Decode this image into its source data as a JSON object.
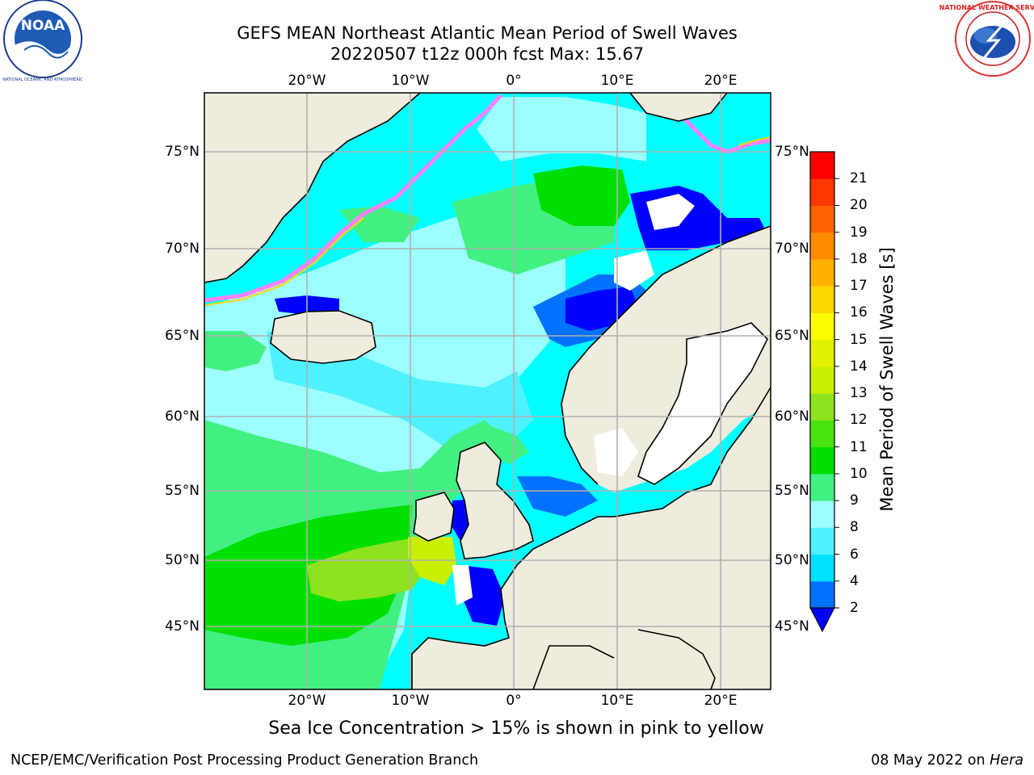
{
  "header": {
    "title_line1": "GEFS MEAN Northeast Atlantic Mean Period of Swell Waves",
    "title_line2": "20220507 t12z 000h fcst   Max: 15.67"
  },
  "logos": {
    "noaa_text": "NOAA",
    "noaa_ring_text": "NATIONAL OCEANIC AND ATMOSPHERIC ADMINISTRATION · U.S. DEPARTMENT OF COMMERCE",
    "nws_ring_text": "NATIONAL WEATHER SERVICE"
  },
  "map": {
    "lon_ticks_top": [
      "20°W",
      "10°W",
      "0°",
      "10°E",
      "20°E"
    ],
    "lon_ticks_bottom": [
      "20°W",
      "10°W",
      "0°",
      "10°E",
      "20°E"
    ],
    "lat_ticks_left": [
      "75°N",
      "70°N",
      "65°N",
      "60°N",
      "55°N",
      "50°N",
      "45°N"
    ],
    "lat_ticks_right": [
      "75°N",
      "70°N",
      "65°N",
      "60°N",
      "55°N",
      "50°N",
      "45°N"
    ],
    "land_color": "#efecde",
    "ocean_base_color": "#00ffff"
  },
  "colorbar": {
    "label": "Mean Period of Swell Waves [s]",
    "levels": [
      "2",
      "4",
      "6",
      "8",
      "9",
      "10",
      "11",
      "12",
      "13",
      "14",
      "15",
      "16",
      "17",
      "18",
      "19",
      "20",
      "21"
    ],
    "colors": [
      "#0072ff",
      "#00e0ff",
      "#4ff0ff",
      "#9dfeff",
      "#42f082",
      "#00e000",
      "#49e40f",
      "#8ee21e",
      "#c8f000",
      "#e2f100",
      "#fcfc00",
      "#ffd700",
      "#ffb200",
      "#ff8a00",
      "#ff6200",
      "#ff3700",
      "#ff0000"
    ],
    "under_color": "#0000ff"
  },
  "caption": "Sea Ice Concentration > 15% is shown in pink to yellow",
  "footer": {
    "left": "NCEP/EMC/Verification Post Processing Product Generation Branch",
    "date": "08 May 2022 on ",
    "host": "Hera"
  }
}
